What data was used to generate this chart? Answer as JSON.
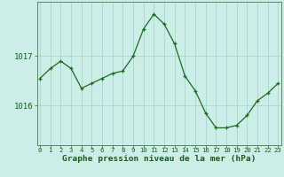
{
  "hours": [
    0,
    1,
    2,
    3,
    4,
    5,
    6,
    7,
    8,
    9,
    10,
    11,
    12,
    13,
    14,
    15,
    16,
    17,
    18,
    19,
    20,
    21,
    22,
    23
  ],
  "pressure": [
    1016.55,
    1016.75,
    1016.9,
    1016.75,
    1016.35,
    1016.45,
    1016.55,
    1016.65,
    1016.7,
    1017.0,
    1017.55,
    1017.85,
    1017.65,
    1017.25,
    1016.6,
    1016.3,
    1015.85,
    1015.55,
    1015.55,
    1015.6,
    1015.8,
    1016.1,
    1016.25,
    1016.45
  ],
  "ylim": [
    1015.2,
    1018.1
  ],
  "yticks": [
    1016,
    1017
  ],
  "xticks": [
    0,
    1,
    2,
    3,
    4,
    5,
    6,
    7,
    8,
    9,
    10,
    11,
    12,
    13,
    14,
    15,
    16,
    17,
    18,
    19,
    20,
    21,
    22,
    23
  ],
  "line_color": "#1a6b1a",
  "marker_color": "#1a6b1a",
  "bg_color": "#cceee8",
  "grid_color": "#aad4ce",
  "xlabel": "Graphe pression niveau de la mer (hPa)",
  "xlabel_color": "#1a5c1a",
  "tick_color": "#1a5c1a",
  "spine_color": "#5a8a5a",
  "xtick_fontsize": 5.2,
  "ytick_fontsize": 6.5,
  "xlabel_fontsize": 6.8
}
